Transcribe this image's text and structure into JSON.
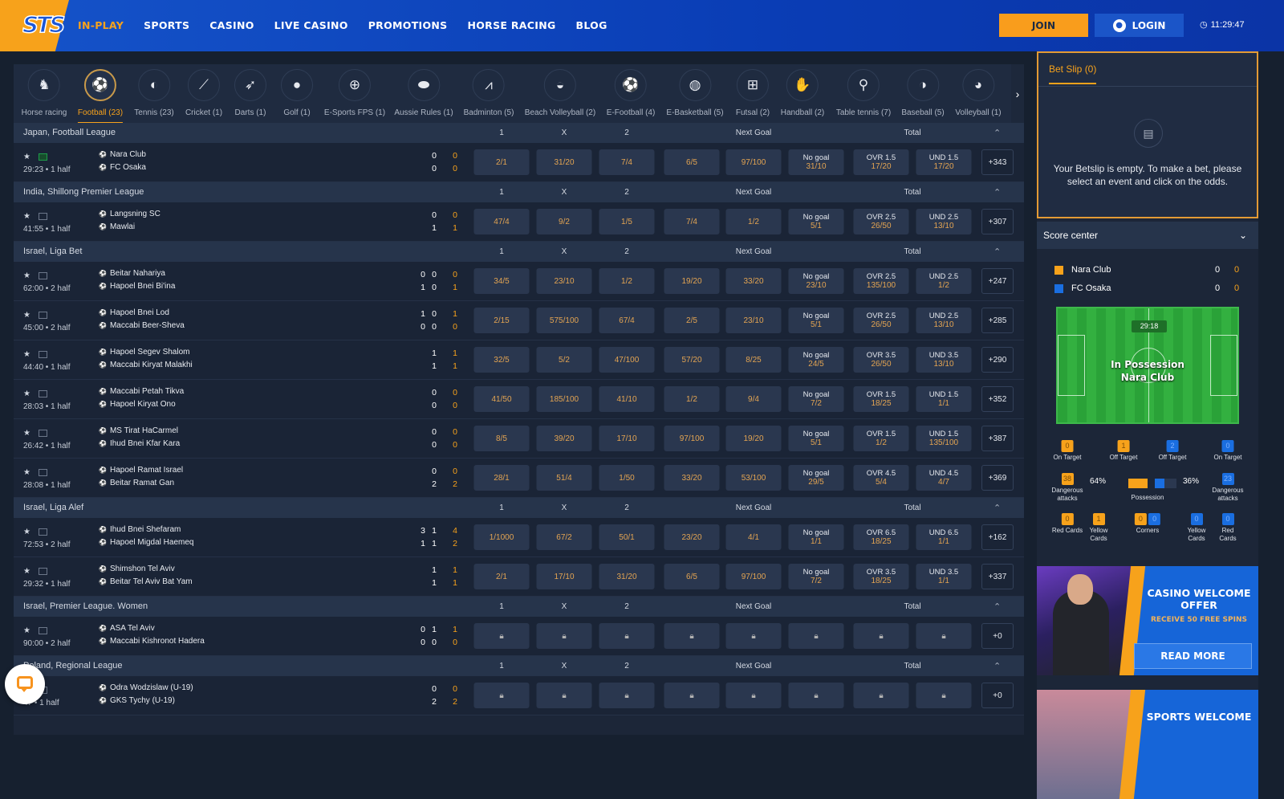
{
  "header": {
    "logo": "STS",
    "nav": [
      "IN-PLAY",
      "SPORTS",
      "CASINO",
      "LIVE CASINO",
      "PROMOTIONS",
      "HORSE RACING",
      "BLOG"
    ],
    "active_nav": 0,
    "join": "JOIN",
    "login": "LOGIN",
    "time": "11:29:47"
  },
  "colors": {
    "accent": "#f7a21b",
    "brand_blue": "#1553c9",
    "panel": "#1c2638"
  },
  "sports": [
    {
      "label": "Horse racing",
      "icon": "horse-racing-icon",
      "glyph": "♞"
    },
    {
      "label": "Football (23)",
      "icon": "football-icon",
      "glyph": "⚽",
      "active": true
    },
    {
      "label": "Tennis (23)",
      "icon": "tennis-icon",
      "glyph": "◐"
    },
    {
      "label": "Cricket (1)",
      "icon": "cricket-icon",
      "glyph": "⟋"
    },
    {
      "label": "Darts (1)",
      "icon": "darts-icon",
      "glyph": "➶"
    },
    {
      "label": "Golf (1)",
      "icon": "golf-icon",
      "glyph": "●"
    },
    {
      "label": "E-Sports FPS (1)",
      "icon": "crosshair-icon",
      "glyph": "⊕"
    },
    {
      "label": "Aussie Rules (1)",
      "icon": "aussie-rules-icon",
      "glyph": "⬬"
    },
    {
      "label": "Badminton (5)",
      "icon": "badminton-icon",
      "glyph": "⩘"
    },
    {
      "label": "Beach Volleyball (2)",
      "icon": "beach-volleyball-icon",
      "glyph": "◒"
    },
    {
      "label": "E-Football (4)",
      "icon": "e-football-icon",
      "glyph": "⚽"
    },
    {
      "label": "E-Basketball (5)",
      "icon": "basketball-icon",
      "glyph": "◍"
    },
    {
      "label": "Futsal (2)",
      "icon": "futsal-icon",
      "glyph": "⊞"
    },
    {
      "label": "Handball (2)",
      "icon": "handball-icon",
      "glyph": "✋"
    },
    {
      "label": "Table tennis (7)",
      "icon": "table-tennis-icon",
      "glyph": "⚲"
    },
    {
      "label": "Baseball (5)",
      "icon": "baseball-icon",
      "glyph": "◑"
    },
    {
      "label": "Volleyball (1)",
      "icon": "volleyball-icon",
      "glyph": "◕"
    }
  ],
  "market_headers": {
    "h1": "1",
    "hx": "X",
    "h2": "2",
    "next_goal": "Next Goal",
    "total": "Total"
  },
  "leagues": [
    {
      "name": "Japan, Football League",
      "matches": [
        {
          "time": "29:23 • 1 half",
          "live_tv": true,
          "home": "Nara Club",
          "away": "FC Osaka",
          "home_scores": [
            "0"
          ],
          "away_scores": [
            "0"
          ],
          "home_total": "0",
          "away_total": "0",
          "odds": [
            "2/1",
            "31/20",
            "7/4",
            "6/5",
            "97/100",
            [
              "No goal",
              "31/10"
            ],
            [
              "OVR 1.5",
              "17/20"
            ],
            [
              "UND 1.5",
              "17/20"
            ]
          ],
          "more": "+343"
        }
      ]
    },
    {
      "name": "India, Shillong Premier League",
      "matches": [
        {
          "time": "41:55 • 1 half",
          "home": "Langsning SC",
          "away": "Mawlai",
          "home_scores": [
            "0"
          ],
          "away_scores": [
            "1"
          ],
          "home_total": "0",
          "away_total": "1",
          "odds": [
            "47/4",
            "9/2",
            "1/5",
            "7/4",
            "1/2",
            [
              "No goal",
              "5/1"
            ],
            [
              "OVR 2.5",
              "26/50"
            ],
            [
              "UND 2.5",
              "13/10"
            ]
          ],
          "more": "+307"
        }
      ]
    },
    {
      "name": "Israel, Liga Bet",
      "matches": [
        {
          "time": "62:00 • 2 half",
          "home": "Beitar Nahariya",
          "away": "Hapoel Bnei Bi'ina",
          "home_scores": [
            "0",
            "0"
          ],
          "away_scores": [
            "1",
            "0"
          ],
          "home_total": "0",
          "away_total": "1",
          "odds": [
            "34/5",
            "23/10",
            "1/2",
            "19/20",
            "33/20",
            [
              "No goal",
              "23/10"
            ],
            [
              "OVR 2.5",
              "135/100"
            ],
            [
              "UND 2.5",
              "1/2"
            ]
          ],
          "more": "+247"
        },
        {
          "time": "45:00 • 2 half",
          "home": "Hapoel Bnei Lod",
          "away": "Maccabi Beer-Sheva",
          "home_scores": [
            "1",
            "0"
          ],
          "away_scores": [
            "0",
            "0"
          ],
          "home_total": "1",
          "away_total": "0",
          "odds": [
            "2/15",
            "575/100",
            "67/4",
            "2/5",
            "23/10",
            [
              "No goal",
              "5/1"
            ],
            [
              "OVR 2.5",
              "26/50"
            ],
            [
              "UND 2.5",
              "13/10"
            ]
          ],
          "more": "+285"
        },
        {
          "time": "44:40 • 1 half",
          "home": "Hapoel Segev Shalom",
          "away": "Maccabi Kiryat Malakhi",
          "home_scores": [
            "1"
          ],
          "away_scores": [
            "1"
          ],
          "home_total": "1",
          "away_total": "1",
          "odds": [
            "32/5",
            "5/2",
            "47/100",
            "57/20",
            "8/25",
            [
              "No goal",
              "24/5"
            ],
            [
              "OVR 3.5",
              "26/50"
            ],
            [
              "UND 3.5",
              "13/10"
            ]
          ],
          "more": "+290"
        },
        {
          "time": "28:03 • 1 half",
          "home": "Maccabi Petah Tikva",
          "away": "Hapoel Kiryat Ono",
          "home_scores": [
            "0"
          ],
          "away_scores": [
            "0"
          ],
          "home_total": "0",
          "away_total": "0",
          "odds": [
            "41/50",
            "185/100",
            "41/10",
            "1/2",
            "9/4",
            [
              "No goal",
              "7/2"
            ],
            [
              "OVR 1.5",
              "18/25"
            ],
            [
              "UND 1.5",
              "1/1"
            ]
          ],
          "more": "+352"
        },
        {
          "time": "26:42 • 1 half",
          "home": "MS Tirat HaCarmel",
          "away": "Ihud Bnei Kfar Kara",
          "home_scores": [
            "0"
          ],
          "away_scores": [
            "0"
          ],
          "home_total": "0",
          "away_total": "0",
          "odds": [
            "8/5",
            "39/20",
            "17/10",
            "97/100",
            "19/20",
            [
              "No goal",
              "5/1"
            ],
            [
              "OVR 1.5",
              "1/2"
            ],
            [
              "UND 1.5",
              "135/100"
            ]
          ],
          "more": "+387"
        },
        {
          "time": "28:08 • 1 half",
          "home": "Hapoel Ramat Israel",
          "away": "Beitar Ramat Gan",
          "home_scores": [
            "0"
          ],
          "away_scores": [
            "2"
          ],
          "home_total": "0",
          "away_total": "2",
          "odds": [
            "28/1",
            "51/4",
            "1/50",
            "33/20",
            "53/100",
            [
              "No goal",
              "29/5"
            ],
            [
              "OVR 4.5",
              "5/4"
            ],
            [
              "UND 4.5",
              "4/7"
            ]
          ],
          "more": "+369"
        }
      ]
    },
    {
      "name": "Israel, Liga Alef",
      "matches": [
        {
          "time": "72:53 • 2 half",
          "home": "Ihud Bnei Shefaram",
          "away": "Hapoel Migdal Haemeq",
          "home_scores": [
            "3",
            "1"
          ],
          "away_scores": [
            "1",
            "1"
          ],
          "home_total": "4",
          "away_total": "2",
          "odds": [
            "1/1000",
            "67/2",
            "50/1",
            "23/20",
            "4/1",
            [
              "No goal",
              "1/1"
            ],
            [
              "OVR 6.5",
              "18/25"
            ],
            [
              "UND 6.5",
              "1/1"
            ]
          ],
          "more": "+162"
        },
        {
          "time": "29:32 • 1 half",
          "home": "Shimshon Tel Aviv",
          "away": "Beitar Tel Aviv Bat Yam",
          "home_scores": [
            "1"
          ],
          "away_scores": [
            "1"
          ],
          "home_total": "1",
          "away_total": "1",
          "odds": [
            "2/1",
            "17/10",
            "31/20",
            "6/5",
            "97/100",
            [
              "No goal",
              "7/2"
            ],
            [
              "OVR 3.5",
              "18/25"
            ],
            [
              "UND 3.5",
              "1/1"
            ]
          ],
          "more": "+337"
        }
      ]
    },
    {
      "name": "Israel, Premier League. Women",
      "matches": [
        {
          "time": "90:00 • 2 half",
          "home": "ASA Tel Aviv",
          "away": "Maccabi Kishronot Hadera",
          "home_scores": [
            "0",
            "1"
          ],
          "away_scores": [
            "0",
            "0"
          ],
          "home_total": "1",
          "away_total": "0",
          "odds": null,
          "more": "+0"
        }
      ]
    },
    {
      "name": "Poland, Regional League",
      "matches": [
        {
          "time": "47 • 1 half",
          "home": "Odra Wodzislaw (U-19)",
          "away": "GKS Tychy (U-19)",
          "home_scores": [
            "0"
          ],
          "away_scores": [
            "2"
          ],
          "home_total": "0",
          "away_total": "2",
          "odds": null,
          "more": "+0"
        }
      ]
    }
  ],
  "betslip": {
    "tab": "Bet Slip (0)",
    "message": "Your Betslip is empty. To make a bet, please select an event and click on the odds."
  },
  "score_center": {
    "title": "Score center",
    "home": {
      "name": "Nara Club",
      "score": "0",
      "score2": "0"
    },
    "away": {
      "name": "FC Osaka",
      "score": "0",
      "score2": "0"
    },
    "clock": "29:18",
    "possession_line1": "In Possession",
    "possession_line2": "Nara Club",
    "stats": {
      "home_on_target": "0",
      "home_off_target": "1",
      "away_off_target": "2",
      "away_on_target": "0",
      "on_target": "On Target",
      "off_target": "Off Target",
      "home_dangerous": "38",
      "away_dangerous": "23",
      "dangerous": "Dangerous attacks",
      "home_possession": "64%",
      "away_possession": "36%",
      "possession": "Possession",
      "home_red": "0",
      "home_yellow": "1",
      "home_corners": "0",
      "away_corners": "0",
      "away_yellow": "0",
      "away_red": "0",
      "red_cards": "Red Cards",
      "yellow_cards": "Yellow Cards",
      "corners": "Corners"
    }
  },
  "promos": [
    {
      "title": "CASINO WELCOME OFFER",
      "subtitle": "RECEIVE 50 FREE SPINS",
      "button": "READ MORE"
    },
    {
      "title": "SPORTS WELCOME"
    }
  ]
}
